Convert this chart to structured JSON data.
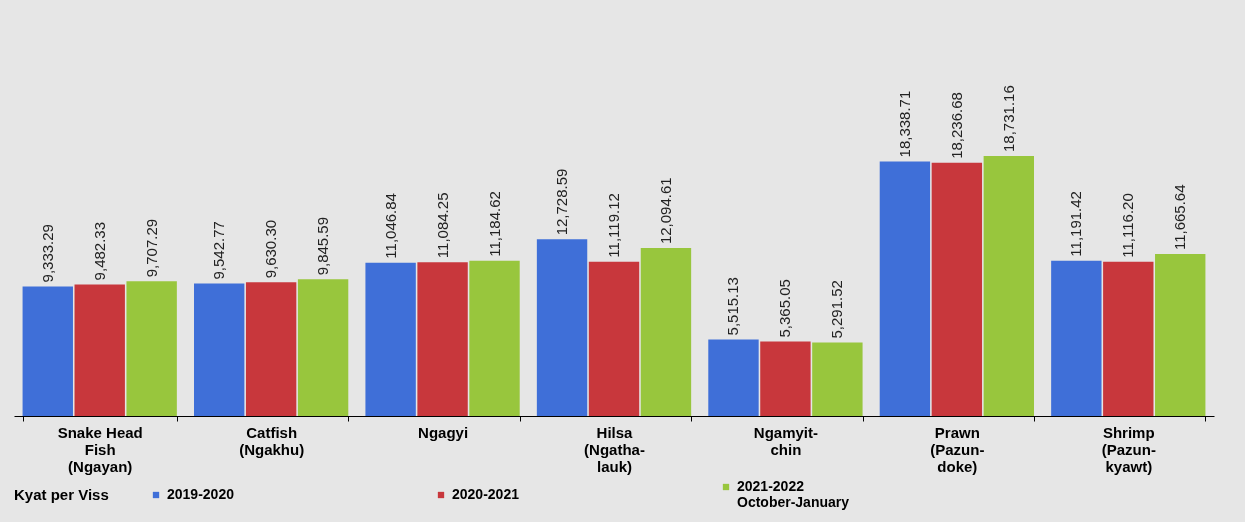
{
  "chart_data": {
    "type": "bar",
    "categories": [
      "Snake Head\nFish\n(Ngayan)",
      "Catfish\n(Ngakhu)",
      "Ngagyi",
      "Hilsa\n(Ngatha-\nlauk)",
      "Ngamyit-\nchin",
      "Prawn\n(Pazun-\ndoke)",
      "Shrimp\n(Pazun-\nkyawt)"
    ],
    "series": [
      {
        "name": "2019-2020",
        "color": "#3f6fd8",
        "values": [
          9333.29,
          9542.77,
          11046.84,
          12728.59,
          5515.13,
          18338.71,
          11191.42
        ],
        "value_labels": [
          "9,333.29",
          "9,542.77",
          "11,046.84",
          "12,728.59",
          "5,515.13",
          "18,338.71",
          "11,191.42"
        ]
      },
      {
        "name": "2020-2021",
        "color": "#c8373c",
        "values": [
          9482.33,
          9630.3,
          11084.25,
          11119.12,
          5365.05,
          18236.68,
          11116.2
        ],
        "value_labels": [
          "9,482.33",
          "9,630.30",
          "11,084.25",
          "11,119.12",
          "5,365.05",
          "18,236.68",
          "11,116.20"
        ]
      },
      {
        "name": "2021-2022\nOctober-January",
        "color": "#98c63d",
        "values": [
          9707.29,
          9845.59,
          11184.62,
          12094.61,
          5291.52,
          18731.16,
          11665.64
        ],
        "value_labels": [
          "9,707.29",
          "9,845.59",
          "11,184.62",
          "12,094.61",
          "5,291.52",
          "18,731.16",
          "11,665.64"
        ]
      }
    ],
    "legend_title": "Kyat per Viss",
    "legend": "bottom"
  }
}
